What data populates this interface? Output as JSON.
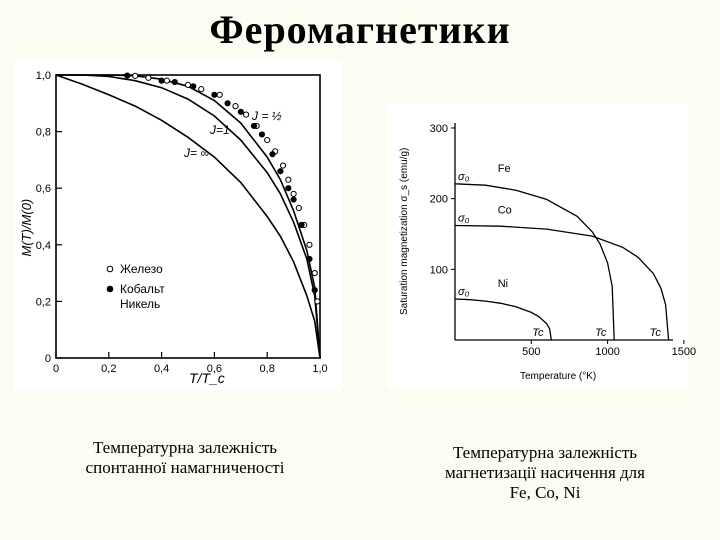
{
  "page": {
    "title": "Феромагнетики",
    "caption_left": [
      "Температурна залежність",
      "спонтанної намагниченості"
    ],
    "caption_right": [
      "Температурна залежність",
      "магнетизації насичення для",
      "Fe, Co, Ni"
    ]
  },
  "chart_data": [
    {
      "type": "scatter",
      "title": "",
      "xlabel": "T/T_c",
      "ylabel": "M(T)/M(0)",
      "xlim": [
        0,
        1.0
      ],
      "ylim": [
        0,
        1.0
      ],
      "xticks": [
        "0",
        "0,2",
        "0,4",
        "0,6",
        "0,8",
        "1,0"
      ],
      "yticks": [
        "0",
        "0,2",
        "0,4",
        "0,6",
        "0,8",
        "1,0"
      ],
      "curve_labels": [
        "J = ½",
        "J=1",
        "J= ∞"
      ],
      "legend": [
        "Железо",
        "Кобальт",
        "Никель"
      ],
      "legend_position": "bottom-left",
      "series": [
        {
          "name": "J = ½",
          "kind": "line",
          "x": [
            0,
            0.1,
            0.2,
            0.3,
            0.4,
            0.5,
            0.6,
            0.7,
            0.8,
            0.85,
            0.9,
            0.95,
            0.98,
            1.0
          ],
          "y": [
            1.0,
            1.0,
            1.0,
            0.997,
            0.985,
            0.96,
            0.91,
            0.83,
            0.71,
            0.63,
            0.52,
            0.38,
            0.25,
            0.0
          ]
        },
        {
          "name": "J=1",
          "kind": "line",
          "x": [
            0,
            0.1,
            0.2,
            0.3,
            0.4,
            0.5,
            0.6,
            0.7,
            0.8,
            0.85,
            0.9,
            0.95,
            0.98,
            1.0
          ],
          "y": [
            1.0,
            1.0,
            0.995,
            0.98,
            0.955,
            0.915,
            0.855,
            0.77,
            0.655,
            0.58,
            0.48,
            0.35,
            0.22,
            0.0
          ]
        },
        {
          "name": "J= ∞",
          "kind": "line",
          "x": [
            0,
            0.1,
            0.2,
            0.3,
            0.4,
            0.5,
            0.6,
            0.7,
            0.8,
            0.85,
            0.9,
            0.95,
            0.98,
            1.0
          ],
          "y": [
            1.0,
            0.967,
            0.93,
            0.89,
            0.84,
            0.78,
            0.71,
            0.62,
            0.5,
            0.43,
            0.34,
            0.22,
            0.13,
            0.0
          ]
        },
        {
          "name": "Железо",
          "kind": "points",
          "marker": "open",
          "x": [
            0.3,
            0.35,
            0.42,
            0.5,
            0.55,
            0.62,
            0.68,
            0.72,
            0.76,
            0.8,
            0.83,
            0.86,
            0.88,
            0.9,
            0.92,
            0.94,
            0.96,
            0.98,
            0.99
          ],
          "y": [
            0.997,
            0.99,
            0.98,
            0.965,
            0.95,
            0.93,
            0.89,
            0.86,
            0.82,
            0.77,
            0.73,
            0.68,
            0.63,
            0.58,
            0.53,
            0.47,
            0.4,
            0.3,
            0.2
          ]
        },
        {
          "name": "Кобальт",
          "kind": "points",
          "marker": "filled",
          "x": [
            0.27,
            0.4,
            0.52,
            0.6,
            0.7,
            0.78,
            0.85,
            0.9,
            0.96
          ],
          "y": [
            0.998,
            0.98,
            0.96,
            0.93,
            0.87,
            0.79,
            0.66,
            0.56,
            0.35
          ]
        },
        {
          "name": "Никель",
          "kind": "points",
          "marker": "filled",
          "x": [
            0.45,
            0.65,
            0.75,
            0.82,
            0.88,
            0.93,
            0.98
          ],
          "y": [
            0.975,
            0.9,
            0.82,
            0.72,
            0.6,
            0.47,
            0.24
          ]
        }
      ]
    },
    {
      "type": "line",
      "title": "",
      "xlabel": "Temperature (°K)",
      "ylabel": "Saturation magnetization σ_s (emu/g)",
      "xlim": [
        0,
        1500
      ],
      "ylim": [
        0,
        300
      ],
      "xticks": [
        500,
        1000,
        1500
      ],
      "yticks": [
        100,
        200,
        300
      ],
      "point_labels": [
        "σ₀",
        "σ₀",
        "σ₀"
      ],
      "tc_labels": [
        "Tc",
        "Tc",
        "Tc"
      ],
      "series": [
        {
          "name": "Fe",
          "x": [
            0,
            200,
            400,
            600,
            800,
            900,
            950,
            1000,
            1030,
            1043
          ],
          "y": [
            221,
            219,
            212,
            199,
            175,
            153,
            136,
            109,
            76,
            0
          ]
        },
        {
          "name": "Co",
          "x": [
            0,
            300,
            600,
            900,
            1100,
            1200,
            1300,
            1350,
            1380,
            1400
          ],
          "y": [
            162,
            161,
            157,
            147,
            131,
            117,
            94,
            73,
            50,
            0
          ]
        },
        {
          "name": "Ni",
          "x": [
            0,
            100,
            200,
            300,
            400,
            500,
            550,
            600,
            620,
            631
          ],
          "y": [
            58,
            57,
            55,
            52,
            47,
            39,
            33,
            23,
            16,
            0
          ]
        }
      ]
    }
  ]
}
